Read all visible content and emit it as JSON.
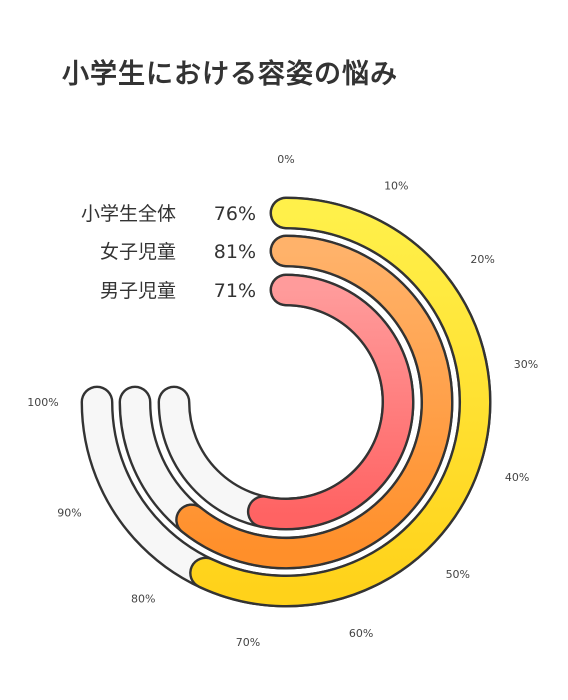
{
  "chart_data": {
    "type": "radial-bar",
    "title": "小学生における容姿の悩み",
    "unit": "%",
    "axis": {
      "min": 0,
      "max": 100,
      "ticks": [
        "0%",
        "10%",
        "20%",
        "30%",
        "40%",
        "50%",
        "60%",
        "70%",
        "80%",
        "90%",
        "100%"
      ]
    },
    "series": [
      {
        "name": "小学生全体",
        "value": 76,
        "label": "76%",
        "color_start": "#fff04a",
        "color_end": "#ffd21a"
      },
      {
        "name": "女子児童",
        "value": 81,
        "label": "81%",
        "color_start": "#ffb26a",
        "color_end": "#ff8f2a"
      },
      {
        "name": "男子児童",
        "value": 71,
        "label": "71%",
        "color_start": "#ff9b9b",
        "color_end": "#ff6363"
      }
    ],
    "track_color": "#f7f7f7",
    "outline_color": "#333333"
  }
}
